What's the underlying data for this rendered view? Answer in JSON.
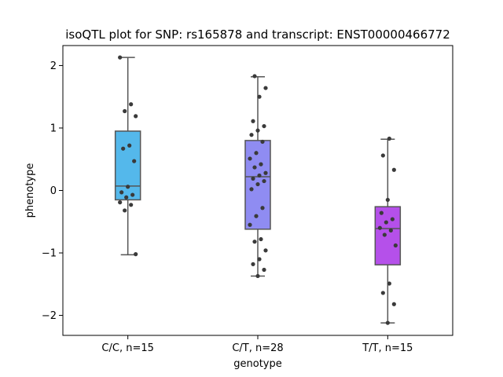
{
  "chart_data": {
    "type": "box",
    "title": "isoQTL plot for SNP: rs165878 and transcript: ENST00000466772",
    "xlabel": "genotype",
    "ylabel": "phenotype",
    "ylim": [
      -2.32,
      2.32
    ],
    "yticks": [
      -2,
      -1,
      0,
      1,
      2
    ],
    "ytick_labels": [
      "−2",
      "−1",
      "0",
      "1",
      "2"
    ],
    "grid": false,
    "categories": [
      "C/C, n=15",
      "C/T, n=28",
      "T/T, n=15"
    ],
    "colors": [
      "#54b8eb",
      "#8f8cf2",
      "#b550ea"
    ],
    "boxes": [
      {
        "whisker_low": -1.03,
        "q1": -0.15,
        "median": 0.07,
        "q3": 0.95,
        "whisker_high": 2.13
      },
      {
        "whisker_low": -1.37,
        "q1": -0.62,
        "median": 0.22,
        "q3": 0.8,
        "whisker_high": 1.82
      },
      {
        "whisker_low": -2.12,
        "q1": -1.19,
        "median": -0.61,
        "q3": -0.26,
        "whisker_high": 0.82
      }
    ],
    "points": [
      [
        2.13,
        1.38,
        1.27,
        1.19,
        0.72,
        0.67,
        0.47,
        0.06,
        -0.03,
        -0.07,
        -0.11,
        -0.19,
        -0.23,
        -0.32,
        -1.02
      ],
      [
        1.83,
        1.64,
        1.5,
        1.11,
        1.03,
        0.96,
        0.89,
        0.78,
        0.6,
        0.51,
        0.42,
        0.37,
        0.28,
        0.24,
        0.19,
        0.15,
        0.1,
        0.02,
        -0.28,
        -0.41,
        -0.55,
        -0.78,
        -0.82,
        -0.96,
        -1.1,
        -1.18,
        -1.27,
        -1.37
      ],
      [
        0.83,
        0.56,
        0.33,
        -0.15,
        -0.36,
        -0.46,
        -0.51,
        -0.6,
        -0.64,
        -0.71,
        -0.88,
        -1.49,
        -1.64,
        -1.82,
        -2.12
      ]
    ]
  }
}
